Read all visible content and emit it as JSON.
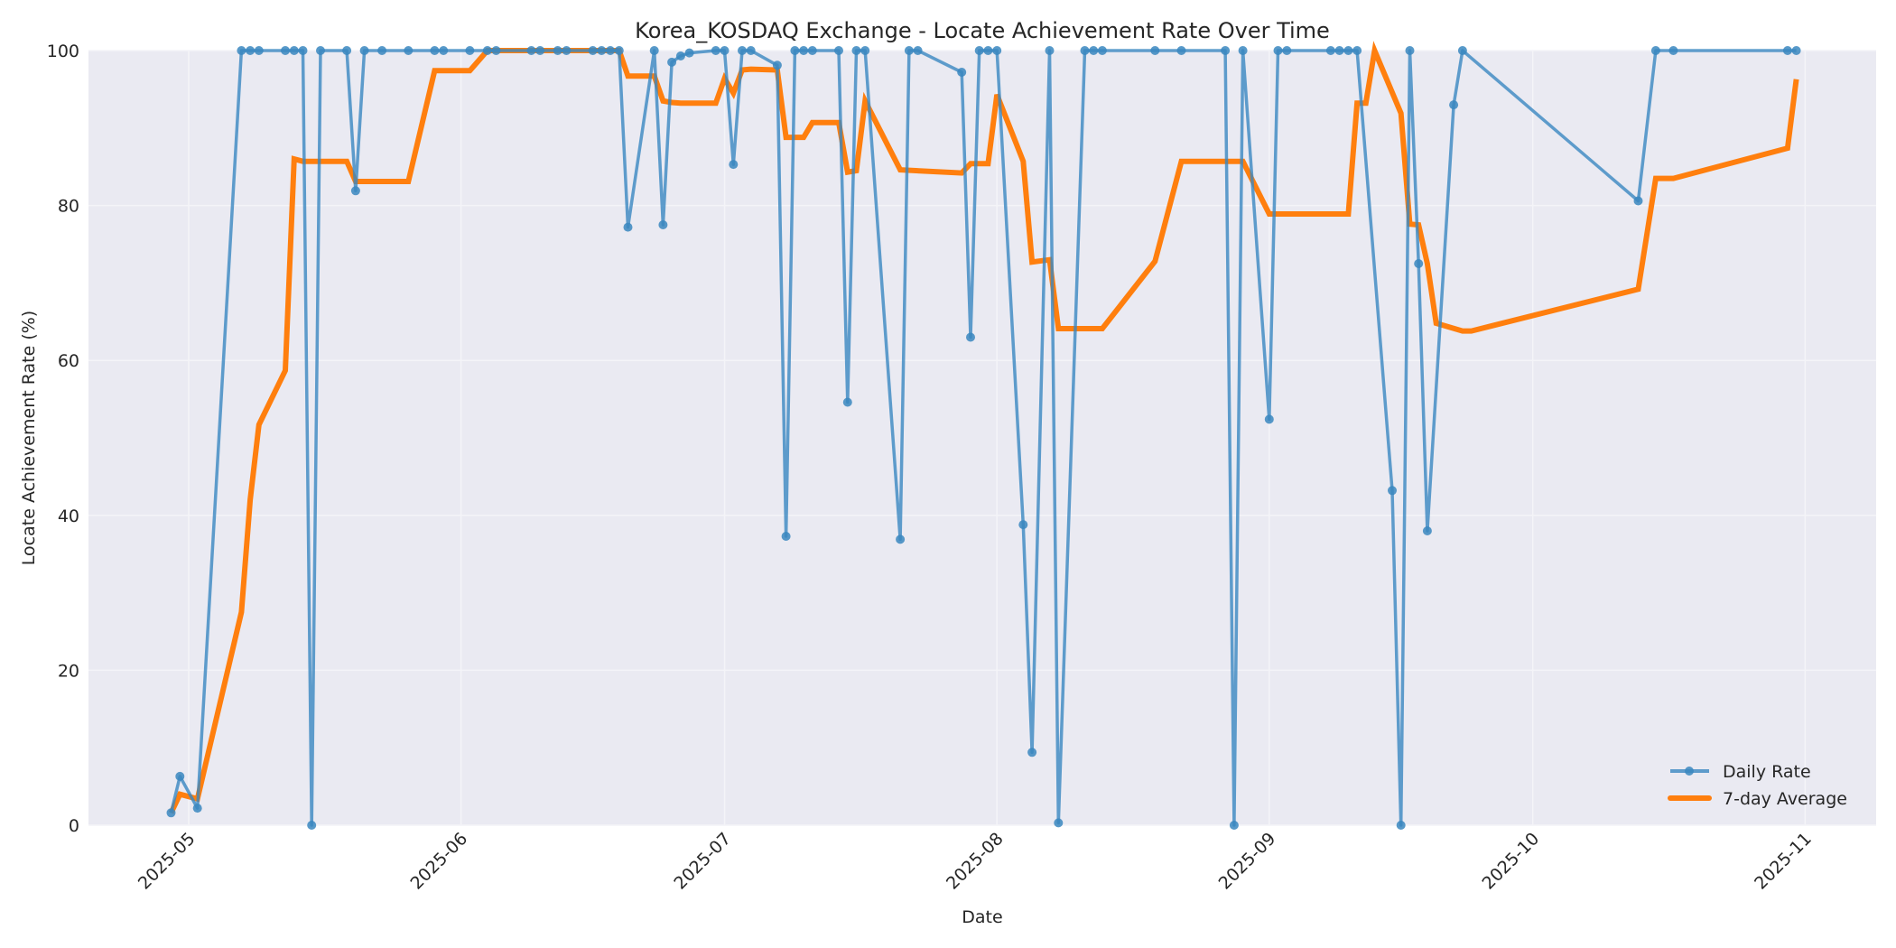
{
  "chart_data": {
    "type": "line",
    "title": "Korea_KOSDAQ Exchange - Locate Achievement Rate Over Time",
    "xlabel": "Date",
    "ylabel": "Locate Achievement Rate (%)",
    "ylim": [
      0,
      100
    ],
    "yticks": [
      0,
      20,
      40,
      60,
      80,
      100
    ],
    "xticks": [
      "2025-05",
      "2025-06",
      "2025-07",
      "2025-08",
      "2025-09",
      "2025-10",
      "2025-11"
    ],
    "xlim": [
      "2025-04-19",
      "2025-11-09"
    ],
    "grid": true,
    "legend_position": "lower right",
    "colors": {
      "daily": "#3a87c0",
      "avg": "#ff7f0e",
      "background": "#eaeaf2",
      "grid": "#f4f4f8"
    },
    "series": [
      {
        "name": "Daily Rate",
        "style": "line-marker",
        "points": [
          [
            "2025-04-29",
            1.6
          ],
          [
            "2025-04-30",
            6.3
          ],
          [
            "2025-05-02",
            2.2
          ],
          [
            "2025-05-07",
            100
          ],
          [
            "2025-05-08",
            100
          ],
          [
            "2025-05-09",
            100
          ],
          [
            "2025-05-12",
            100
          ],
          [
            "2025-05-13",
            100
          ],
          [
            "2025-05-14",
            100
          ],
          [
            "2025-05-15",
            0
          ],
          [
            "2025-05-16",
            100
          ],
          [
            "2025-05-19",
            100
          ],
          [
            "2025-05-20",
            81.9
          ],
          [
            "2025-05-21",
            100
          ],
          [
            "2025-05-23",
            100
          ],
          [
            "2025-05-26",
            100
          ],
          [
            "2025-05-29",
            100
          ],
          [
            "2025-05-30",
            100
          ],
          [
            "2025-06-02",
            100
          ],
          [
            "2025-06-04",
            100
          ],
          [
            "2025-06-05",
            100
          ],
          [
            "2025-06-09",
            100
          ],
          [
            "2025-06-10",
            100
          ],
          [
            "2025-06-12",
            100
          ],
          [
            "2025-06-13",
            100
          ],
          [
            "2025-06-16",
            100
          ],
          [
            "2025-06-17",
            100
          ],
          [
            "2025-06-18",
            100
          ],
          [
            "2025-06-19",
            100
          ],
          [
            "2025-06-20",
            77.2
          ],
          [
            "2025-06-23",
            100
          ],
          [
            "2025-06-24",
            77.5
          ],
          [
            "2025-06-25",
            98.5
          ],
          [
            "2025-06-26",
            99.3
          ],
          [
            "2025-06-27",
            99.7
          ],
          [
            "2025-06-30",
            100
          ],
          [
            "2025-07-01",
            100
          ],
          [
            "2025-07-02",
            85.3
          ],
          [
            "2025-07-03",
            100
          ],
          [
            "2025-07-04",
            100
          ],
          [
            "2025-07-07",
            98.1
          ],
          [
            "2025-07-08",
            37.3
          ],
          [
            "2025-07-09",
            100
          ],
          [
            "2025-07-10",
            100
          ],
          [
            "2025-07-11",
            100
          ],
          [
            "2025-07-14",
            100
          ],
          [
            "2025-07-15",
            54.6
          ],
          [
            "2025-07-16",
            100
          ],
          [
            "2025-07-17",
            100
          ],
          [
            "2025-07-21",
            36.9
          ],
          [
            "2025-07-22",
            100
          ],
          [
            "2025-07-23",
            100
          ],
          [
            "2025-07-28",
            97.2
          ],
          [
            "2025-07-29",
            63.0
          ],
          [
            "2025-07-30",
            100
          ],
          [
            "2025-07-31",
            100
          ],
          [
            "2025-08-01",
            100
          ],
          [
            "2025-08-04",
            38.8
          ],
          [
            "2025-08-05",
            9.4
          ],
          [
            "2025-08-07",
            100
          ],
          [
            "2025-08-08",
            0.3
          ],
          [
            "2025-08-11",
            100
          ],
          [
            "2025-08-12",
            100
          ],
          [
            "2025-08-13",
            100
          ],
          [
            "2025-08-19",
            100
          ],
          [
            "2025-08-22",
            100
          ],
          [
            "2025-08-27",
            100
          ],
          [
            "2025-08-28",
            0
          ],
          [
            "2025-08-29",
            100
          ],
          [
            "2025-09-01",
            52.4
          ],
          [
            "2025-09-02",
            100
          ],
          [
            "2025-09-03",
            100
          ],
          [
            "2025-09-08",
            100
          ],
          [
            "2025-09-09",
            100
          ],
          [
            "2025-09-10",
            100
          ],
          [
            "2025-09-11",
            100
          ],
          [
            "2025-09-15",
            43.2
          ],
          [
            "2025-09-16",
            0
          ],
          [
            "2025-09-17",
            100
          ],
          [
            "2025-09-18",
            72.5
          ],
          [
            "2025-09-19",
            38.0
          ],
          [
            "2025-09-22",
            93.0
          ],
          [
            "2025-09-23",
            100
          ],
          [
            "2025-10-13",
            80.6
          ],
          [
            "2025-10-15",
            100
          ],
          [
            "2025-10-17",
            100
          ],
          [
            "2025-10-30",
            100
          ],
          [
            "2025-10-31",
            100
          ]
        ]
      },
      {
        "name": "7-day Average",
        "style": "line",
        "points": [
          [
            "2025-04-29",
            1.6
          ],
          [
            "2025-04-30",
            4.0
          ],
          [
            "2025-05-02",
            3.4
          ],
          [
            "2025-05-07",
            27.5
          ],
          [
            "2025-05-08",
            42.0
          ],
          [
            "2025-05-09",
            51.7
          ],
          [
            "2025-05-12",
            58.7
          ],
          [
            "2025-05-13",
            86.0
          ],
          [
            "2025-05-14",
            85.7
          ],
          [
            "2025-05-15",
            85.7
          ],
          [
            "2025-05-16",
            85.7
          ],
          [
            "2025-05-19",
            85.7
          ],
          [
            "2025-05-20",
            83.1
          ],
          [
            "2025-05-21",
            83.1
          ],
          [
            "2025-05-23",
            83.1
          ],
          [
            "2025-05-26",
            83.1
          ],
          [
            "2025-05-29",
            97.4
          ],
          [
            "2025-05-30",
            97.4
          ],
          [
            "2025-06-02",
            97.4
          ],
          [
            "2025-06-04",
            100
          ],
          [
            "2025-06-05",
            100
          ],
          [
            "2025-06-19",
            100
          ],
          [
            "2025-06-20",
            96.7
          ],
          [
            "2025-06-23",
            96.7
          ],
          [
            "2025-06-24",
            93.5
          ],
          [
            "2025-06-25",
            93.3
          ],
          [
            "2025-06-26",
            93.2
          ],
          [
            "2025-06-27",
            93.2
          ],
          [
            "2025-06-30",
            93.2
          ],
          [
            "2025-07-01",
            96.4
          ],
          [
            "2025-07-02",
            94.5
          ],
          [
            "2025-07-03",
            97.5
          ],
          [
            "2025-07-04",
            97.6
          ],
          [
            "2025-07-07",
            97.5
          ],
          [
            "2025-07-08",
            88.8
          ],
          [
            "2025-07-10",
            88.8
          ],
          [
            "2025-07-11",
            90.7
          ],
          [
            "2025-07-14",
            90.7
          ],
          [
            "2025-07-15",
            84.3
          ],
          [
            "2025-07-16",
            84.5
          ],
          [
            "2025-07-17",
            93.5
          ],
          [
            "2025-07-21",
            84.6
          ],
          [
            "2025-07-28",
            84.2
          ],
          [
            "2025-07-29",
            85.4
          ],
          [
            "2025-07-31",
            85.4
          ],
          [
            "2025-08-01",
            94.3
          ],
          [
            "2025-08-04",
            85.7
          ],
          [
            "2025-08-05",
            72.7
          ],
          [
            "2025-08-07",
            73.0
          ],
          [
            "2025-08-08",
            64.1
          ],
          [
            "2025-08-11",
            64.1
          ],
          [
            "2025-08-13",
            64.1
          ],
          [
            "2025-08-19",
            72.8
          ],
          [
            "2025-08-22",
            85.7
          ],
          [
            "2025-08-28",
            85.7
          ],
          [
            "2025-08-29",
            85.7
          ],
          [
            "2025-09-01",
            78.9
          ],
          [
            "2025-09-10",
            78.9
          ],
          [
            "2025-09-11",
            93.2
          ],
          [
            "2025-09-12",
            93.2
          ],
          [
            "2025-09-13",
            100
          ],
          [
            "2025-09-16",
            91.9
          ],
          [
            "2025-09-17",
            77.6
          ],
          [
            "2025-09-18",
            77.5
          ],
          [
            "2025-09-19",
            72.5
          ],
          [
            "2025-09-20",
            64.8
          ],
          [
            "2025-09-23",
            63.8
          ],
          [
            "2025-09-24",
            63.8
          ],
          [
            "2025-10-13",
            69.2
          ],
          [
            "2025-10-15",
            83.5
          ],
          [
            "2025-10-17",
            83.5
          ],
          [
            "2025-10-30",
            87.4
          ],
          [
            "2025-10-31",
            96.3
          ]
        ]
      }
    ]
  },
  "legend": {
    "items": [
      {
        "label": "Daily Rate"
      },
      {
        "label": "7-day Average"
      }
    ]
  }
}
